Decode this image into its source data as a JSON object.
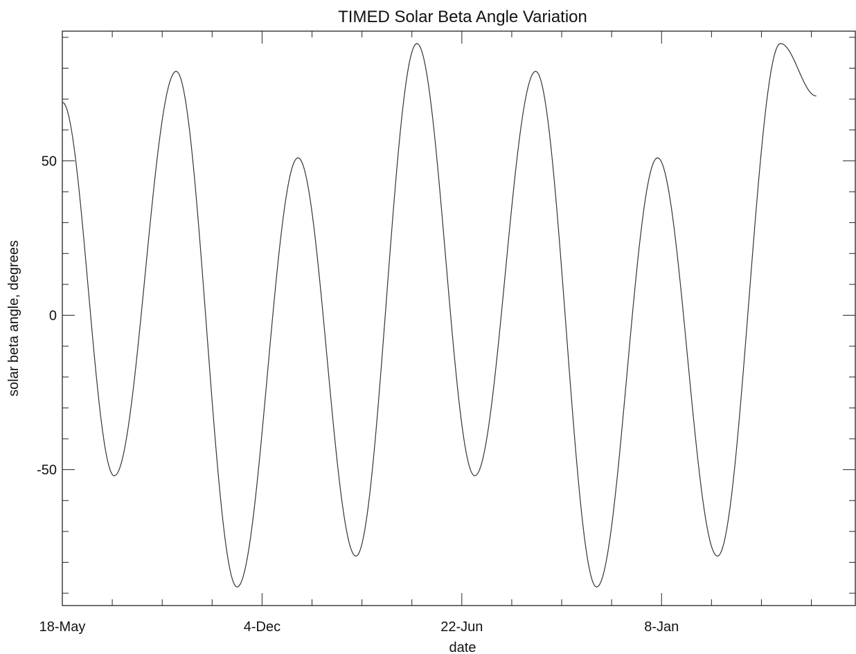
{
  "chart_data": {
    "type": "line",
    "title": "TIMED Solar Beta Angle Variation",
    "xlabel": "date",
    "ylabel": "solar beta angle, degrees",
    "x_tick_labels": [
      "18-May",
      "4-Dec",
      "22-Jun",
      "8-Jan"
    ],
    "x_tick_days": [
      0,
      200,
      400,
      600
    ],
    "x_minor_tick_every_days": 50,
    "xlim_days": [
      0,
      794
    ],
    "y_tick_labels": [
      "50",
      "0",
      "-50"
    ],
    "y_tick_values": [
      50,
      0,
      -50
    ],
    "ylim": [
      -94,
      92
    ],
    "grid": false,
    "series": [
      {
        "color": "#333333",
        "x_days": [
          0,
          52,
          114,
          175,
          236,
          294,
          355,
          413,
          474,
          535,
          596,
          656,
          719,
          755
        ],
        "y": [
          69,
          -52,
          79,
          -88,
          51,
          -78,
          88,
          -52,
          79,
          -88,
          51,
          -78,
          88,
          71
        ]
      }
    ]
  }
}
